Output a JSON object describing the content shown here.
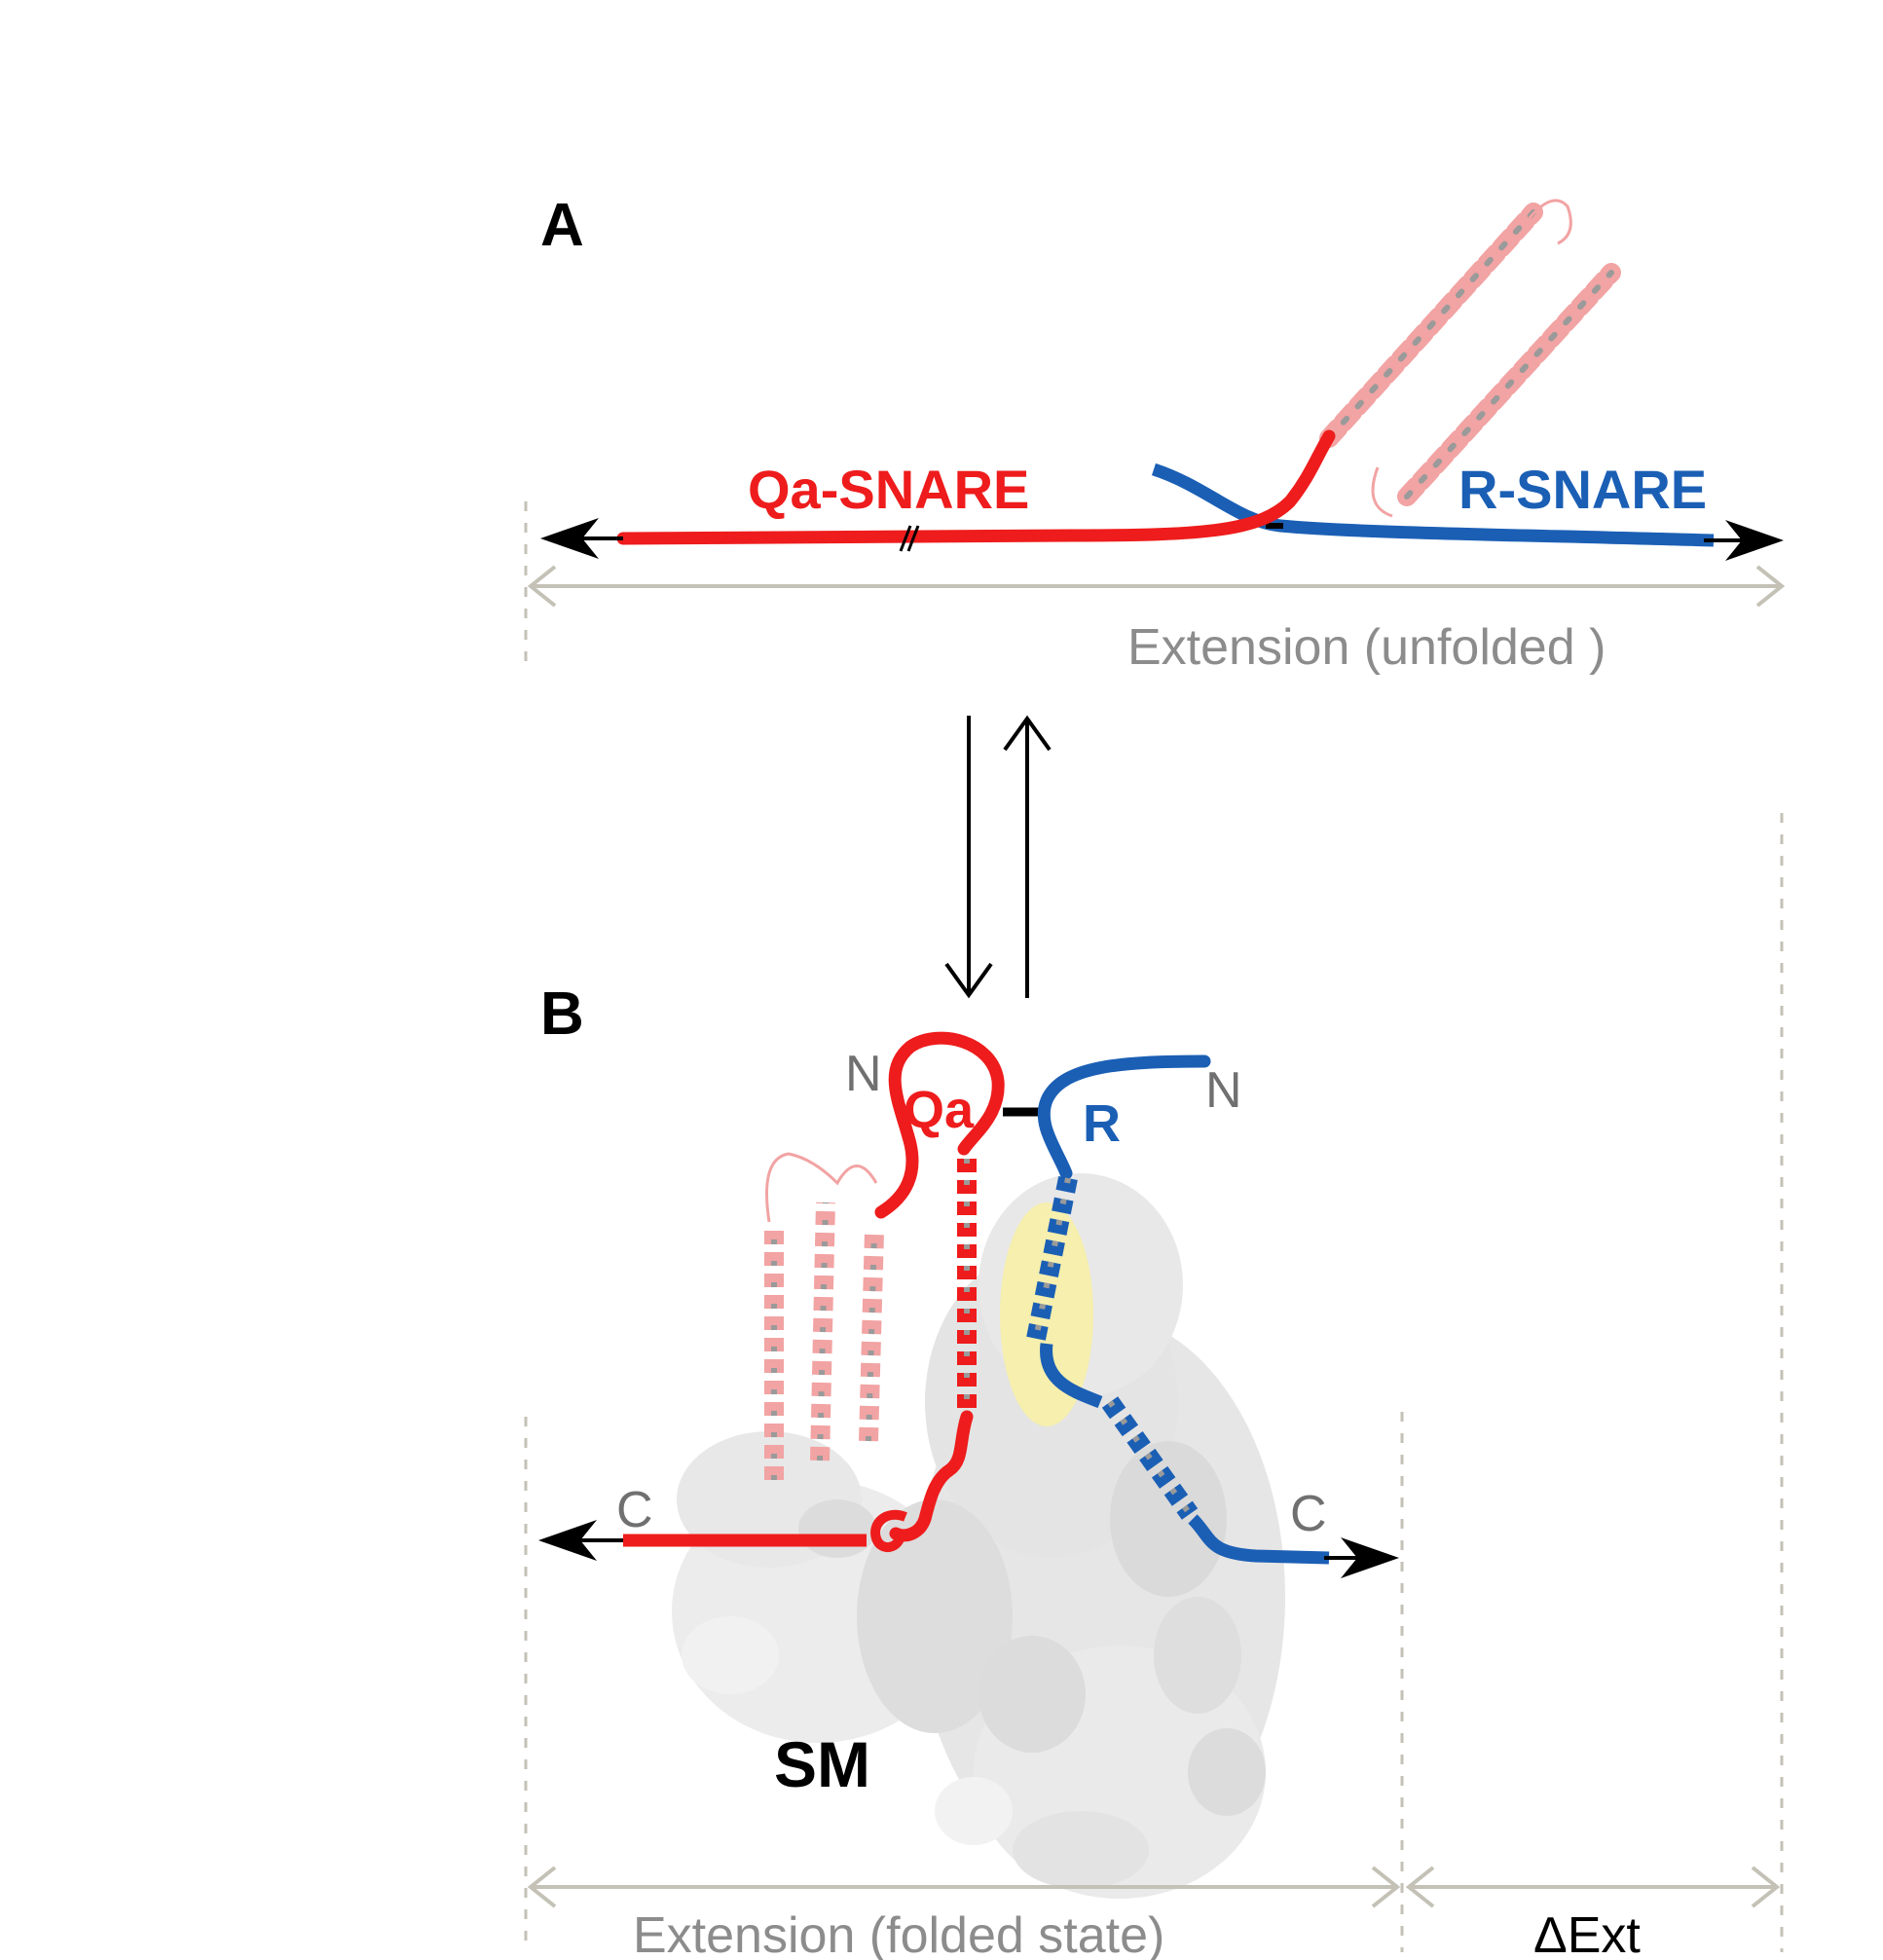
{
  "panel_a": {
    "letter": "A",
    "qa_label": "Qa-SNARE",
    "r_label": "R-SNARE",
    "extension_label": "Extension (unfolded )"
  },
  "panel_b": {
    "letter": "B",
    "qa_label": "Qa",
    "r_label": "R",
    "qa_n_terminus": "N",
    "r_n_terminus": "N",
    "qa_c_terminus": "C",
    "r_c_terminus": "C",
    "sm_label": "SM",
    "extension_label": "Extension (folded state)",
    "delta_label": "ΔExt"
  },
  "colors": {
    "qa": "#ee1c1c",
    "r": "#1b5fb5",
    "faded_helix": "#f2a3a3",
    "helix_shadow": "#9a9a9a",
    "sm_surface": "#e9e9e9",
    "contact_patch": "#f7f0a6",
    "guide": "#c4c1b6",
    "ext_text": "#8c8c8c",
    "arrow": "#000000"
  }
}
